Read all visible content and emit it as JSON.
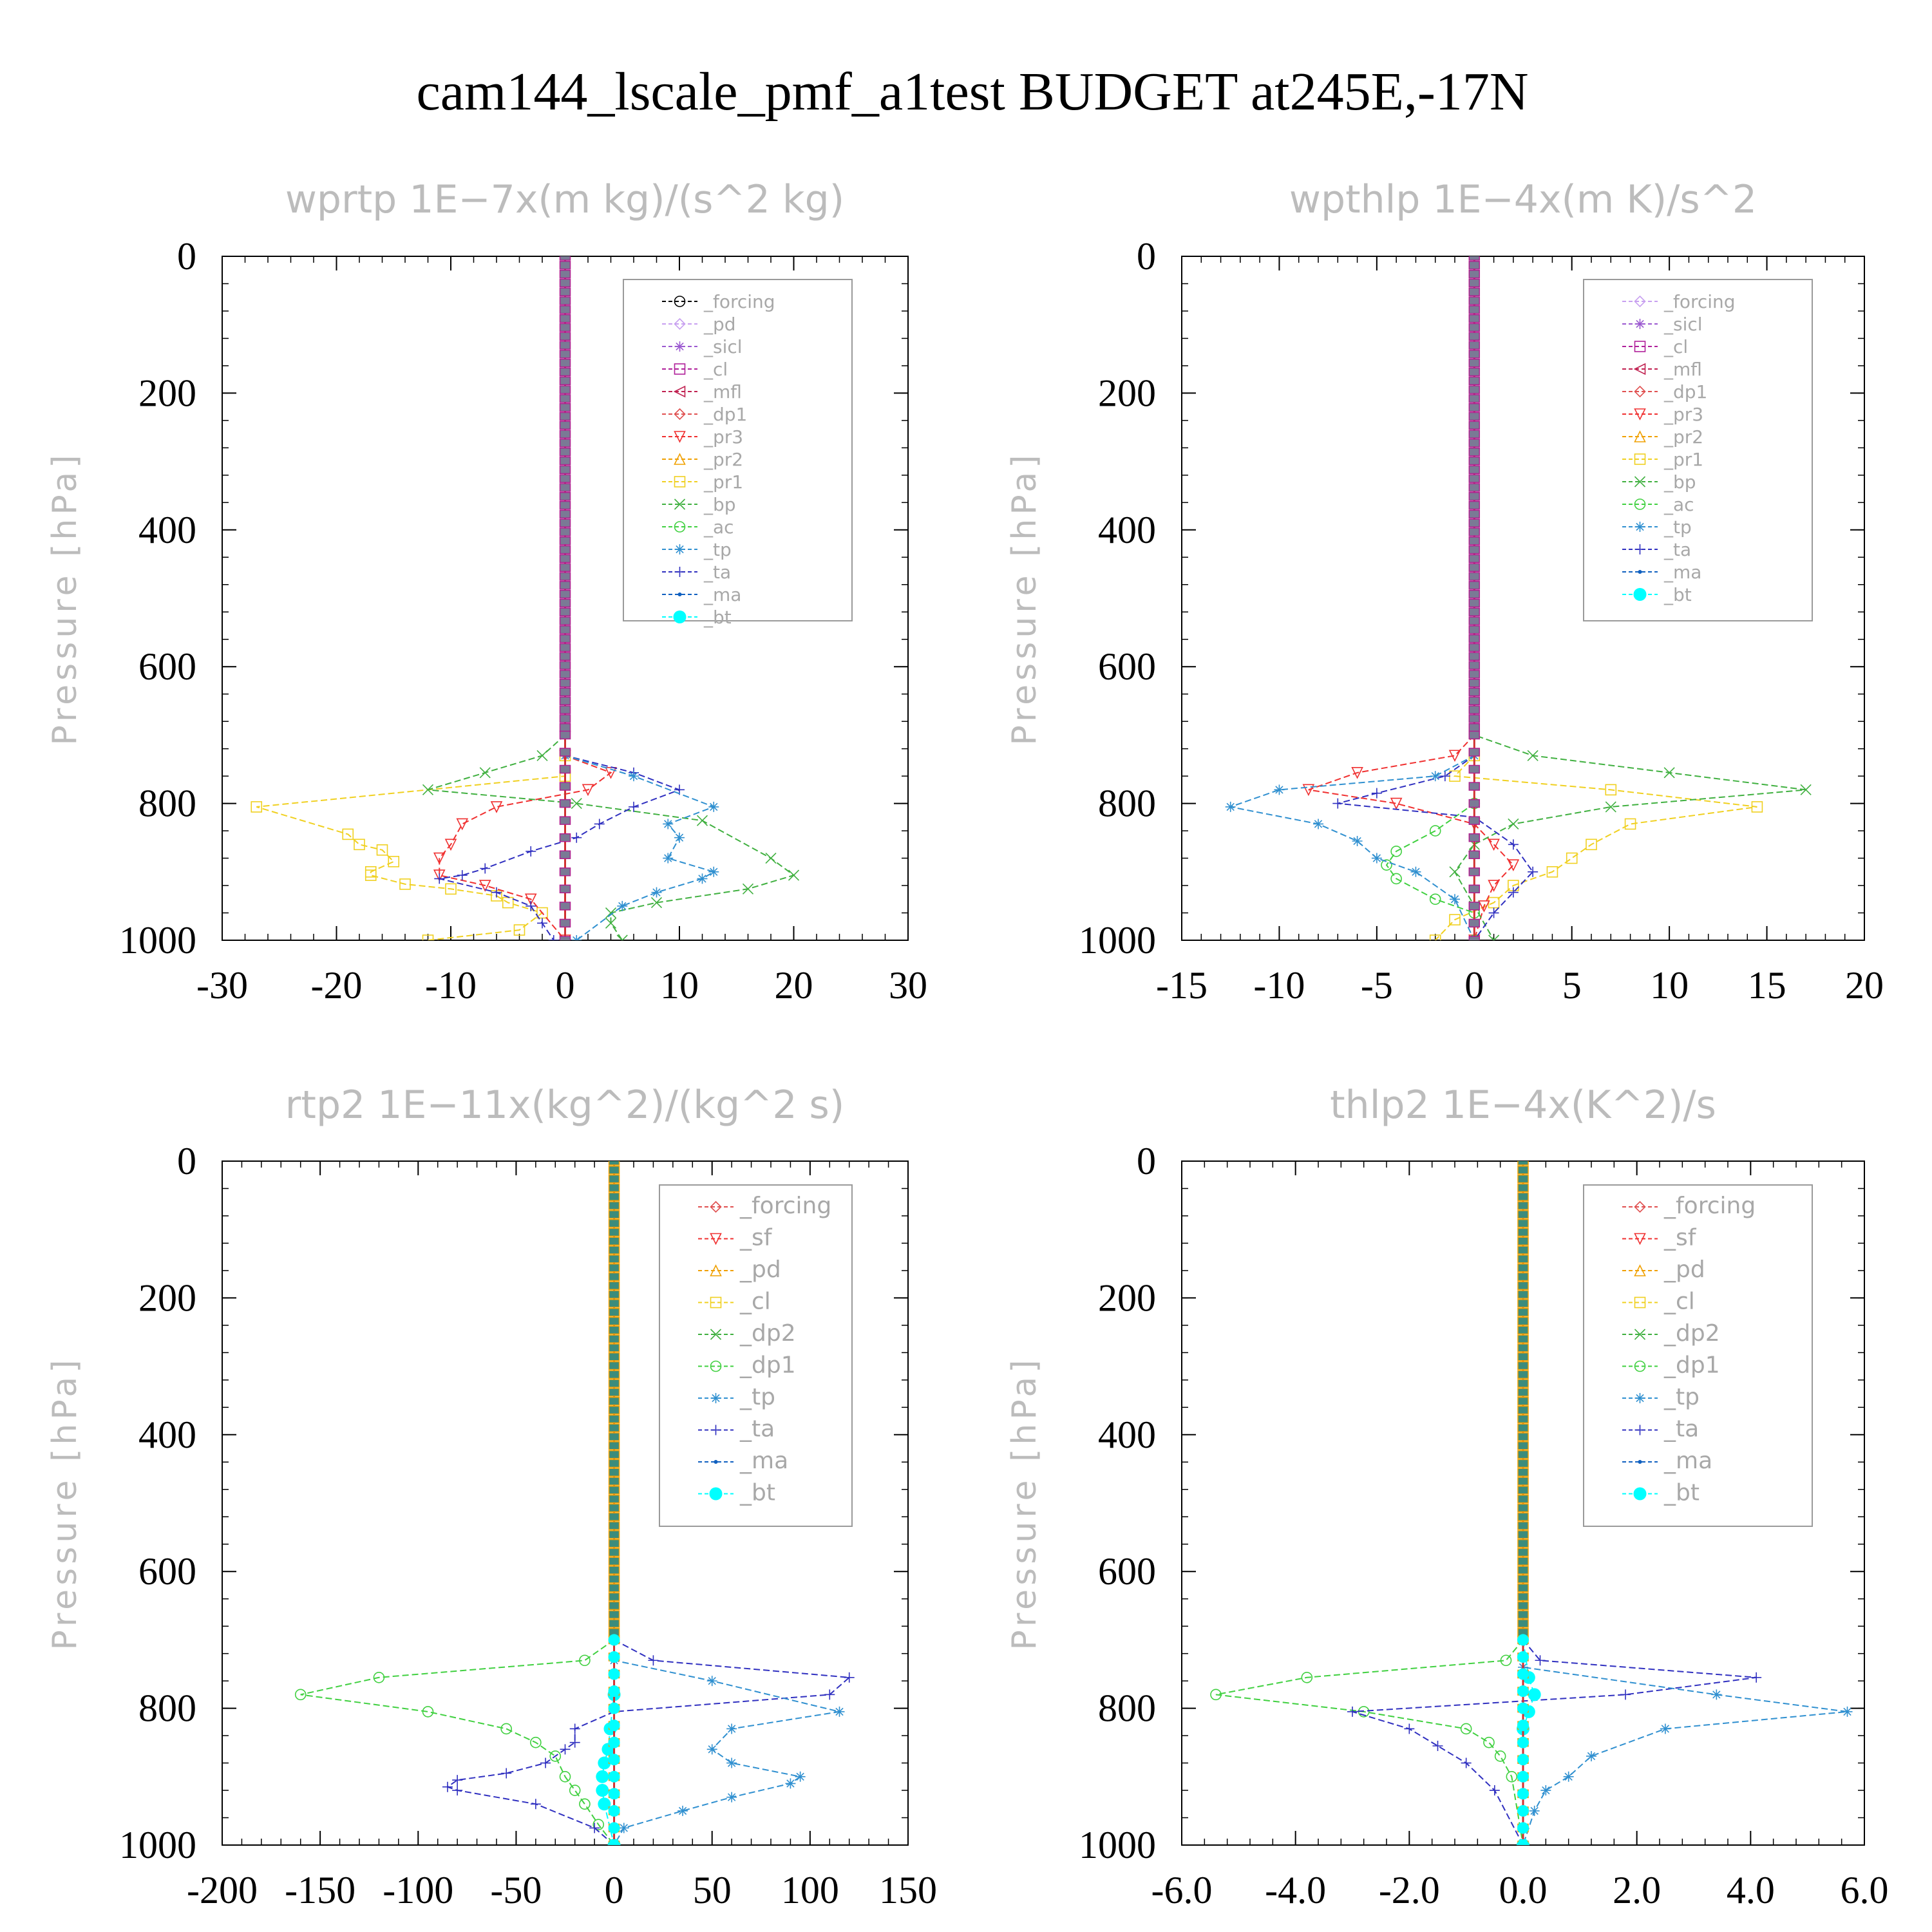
{
  "title": "cam144_lscale_pmf_a1test  BUDGET at245E,-17N",
  "chart_data": [
    {
      "type": "line",
      "title": "wprtp   1E−7x(m kg)/(s^2 kg)",
      "ylabel": "Pressure [hPa]",
      "xlim": [
        -30,
        30
      ],
      "ylim": [
        1000,
        0
      ],
      "xticks": [
        -30,
        -20,
        -10,
        0,
        10,
        20,
        30
      ],
      "xtick_labels": [
        "-30",
        "-20",
        "-10",
        "0",
        "10",
        "20",
        "30"
      ],
      "yticks": [
        0,
        200,
        400,
        600,
        800,
        1000
      ],
      "ytick_labels": [
        "0",
        "200",
        "400",
        "600",
        "800",
        "1000"
      ],
      "legend_position": "top-right",
      "grid": false,
      "legend": [
        {
          "name": "_forcing",
          "color": "#000000",
          "marker": "circle-dot"
        },
        {
          "name": "_pd",
          "color": "#c8a0f0",
          "marker": "diamond"
        },
        {
          "name": "_sicl",
          "color": "#9b59d0",
          "marker": "star"
        },
        {
          "name": "_cl",
          "color": "#b0209a",
          "marker": "plus-square"
        },
        {
          "name": "_mfl",
          "color": "#c02050",
          "marker": "tri-left"
        },
        {
          "name": "_dp1",
          "color": "#e05050",
          "marker": "diamond"
        },
        {
          "name": "_pr3",
          "color": "#f03030",
          "marker": "tri-down"
        },
        {
          "name": "_pr2",
          "color": "#f0a000",
          "marker": "tri-up"
        },
        {
          "name": "_pr1",
          "color": "#f0d020",
          "marker": "square"
        },
        {
          "name": "_bp",
          "color": "#40b040",
          "marker": "x"
        },
        {
          "name": "_ac",
          "color": "#40d040",
          "marker": "circle"
        },
        {
          "name": "_tp",
          "color": "#3090d0",
          "marker": "asterisk"
        },
        {
          "name": "_ta",
          "color": "#3030c0",
          "marker": "plus"
        },
        {
          "name": "_ma",
          "color": "#1060c0",
          "marker": "dot"
        },
        {
          "name": "_bt",
          "color": "#00ffff",
          "marker": "filled-circle"
        }
      ],
      "series": [
        {
          "name": "_pr1",
          "x": [
            0,
            0,
            0,
            -27,
            -19,
            -18,
            -16,
            -15,
            -17,
            -17,
            -14,
            -10,
            -6,
            -5,
            -2,
            -4,
            -12
          ],
          "y": [
            700,
            730,
            760,
            805,
            845,
            860,
            868,
            885,
            900,
            905,
            918,
            925,
            935,
            945,
            960,
            985,
            1000
          ]
        },
        {
          "name": "_pr3",
          "x": [
            0,
            0,
            4,
            2,
            -6,
            -9,
            -10,
            -11,
            -11,
            -7,
            -3,
            0
          ],
          "y": [
            700,
            730,
            755,
            780,
            805,
            830,
            860,
            880,
            905,
            920,
            940,
            1000
          ]
        },
        {
          "name": "_bp",
          "x": [
            0,
            -2,
            -7,
            -12,
            1,
            12,
            18,
            20,
            16,
            8,
            4,
            4,
            5
          ],
          "y": [
            700,
            730,
            755,
            780,
            800,
            825,
            880,
            905,
            925,
            945,
            960,
            975,
            1000
          ]
        },
        {
          "name": "_ta",
          "x": [
            0,
            0,
            6,
            10,
            6,
            3,
            1,
            -3,
            -7,
            -9,
            -11,
            -6,
            -3,
            -2,
            -1
          ],
          "y": [
            700,
            730,
            755,
            780,
            805,
            830,
            850,
            870,
            895,
            905,
            910,
            930,
            950,
            975,
            1000
          ]
        },
        {
          "name": "_tp",
          "x": [
            0,
            0,
            6,
            13,
            9,
            10,
            9,
            13,
            12,
            8,
            5,
            1
          ],
          "y": [
            700,
            730,
            760,
            805,
            830,
            850,
            880,
            900,
            910,
            930,
            950,
            1000
          ]
        }
      ]
    },
    {
      "type": "line",
      "title": "wpthlp   1E−4x(m K)/s^2",
      "ylabel": "Pressure [hPa]",
      "xlim": [
        -15,
        20
      ],
      "ylim": [
        1000,
        0
      ],
      "xticks": [
        -15,
        -10,
        -5,
        0,
        5,
        10,
        15,
        20
      ],
      "xtick_labels": [
        "-15",
        "-10",
        "-5",
        "0",
        "5",
        "10",
        "15",
        "20"
      ],
      "yticks": [
        0,
        200,
        400,
        600,
        800,
        1000
      ],
      "ytick_labels": [
        "0",
        "200",
        "400",
        "600",
        "800",
        "1000"
      ],
      "legend_position": "top-right",
      "grid": false,
      "legend": [
        {
          "name": "_forcing",
          "color": "#c8a0f0",
          "marker": "diamond"
        },
        {
          "name": "_sicl",
          "color": "#9b59d0",
          "marker": "star"
        },
        {
          "name": "_cl",
          "color": "#b0209a",
          "marker": "plus-square"
        },
        {
          "name": "_mfl",
          "color": "#c02050",
          "marker": "tri-left"
        },
        {
          "name": "_dp1",
          "color": "#e05050",
          "marker": "diamond"
        },
        {
          "name": "_pr3",
          "color": "#f03030",
          "marker": "tri-down"
        },
        {
          "name": "_pr2",
          "color": "#f0a000",
          "marker": "tri-up"
        },
        {
          "name": "_pr1",
          "color": "#f0d020",
          "marker": "square"
        },
        {
          "name": "_bp",
          "color": "#40b040",
          "marker": "x"
        },
        {
          "name": "_ac",
          "color": "#40d040",
          "marker": "circle"
        },
        {
          "name": "_tp",
          "color": "#3090d0",
          "marker": "asterisk"
        },
        {
          "name": "_ta",
          "color": "#3030c0",
          "marker": "plus"
        },
        {
          "name": "_ma",
          "color": "#1060c0",
          "marker": "dot"
        },
        {
          "name": "_bt",
          "color": "#00ffff",
          "marker": "filled-circle"
        }
      ],
      "series": [
        {
          "name": "_pr1",
          "x": [
            0,
            0,
            -1,
            7,
            14.5,
            8,
            6,
            5,
            4,
            2,
            1,
            -1,
            -2
          ],
          "y": [
            700,
            730,
            760,
            780,
            805,
            830,
            860,
            880,
            900,
            920,
            945,
            970,
            1000
          ]
        },
        {
          "name": "_pr3",
          "x": [
            0,
            -1,
            -6,
            -8.5,
            -4,
            0,
            1,
            2,
            1,
            0.5,
            0
          ],
          "y": [
            700,
            730,
            755,
            780,
            800,
            830,
            860,
            890,
            920,
            950,
            1000
          ]
        },
        {
          "name": "_bp",
          "x": [
            0,
            0,
            3,
            10,
            17,
            7,
            2,
            0,
            -1,
            0,
            1
          ],
          "y": [
            690,
            700,
            730,
            755,
            780,
            805,
            830,
            860,
            900,
            950,
            1000
          ]
        },
        {
          "name": "_ac",
          "x": [
            0,
            0,
            -2,
            -4,
            -4.5,
            -4,
            -2,
            0,
            0
          ],
          "y": [
            700,
            800,
            840,
            870,
            890,
            910,
            940,
            960,
            1000
          ]
        },
        {
          "name": "_ta",
          "x": [
            0,
            0,
            -1.5,
            -5,
            -7,
            0,
            2,
            3,
            2,
            1,
            0
          ],
          "y": [
            700,
            730,
            760,
            785,
            800,
            820,
            860,
            900,
            930,
            960,
            1000
          ]
        },
        {
          "name": "_tp",
          "x": [
            0,
            0,
            -2,
            -10,
            -12.5,
            -8,
            -6,
            -5,
            -3,
            -1,
            0
          ],
          "y": [
            700,
            730,
            760,
            780,
            805,
            830,
            855,
            880,
            900,
            940,
            1000
          ]
        }
      ]
    },
    {
      "type": "line",
      "title": "rtp2   1E−11x(kg^2)/(kg^2 s)",
      "ylabel": "Pressure [hPa]",
      "xlim": [
        -200,
        150
      ],
      "ylim": [
        1000,
        0
      ],
      "xticks": [
        -200,
        -150,
        -100,
        -50,
        0,
        50,
        100,
        150
      ],
      "xtick_labels": [
        "-200",
        "-150",
        "-100",
        "-50",
        "0",
        "50",
        "100",
        "150"
      ],
      "yticks": [
        0,
        200,
        400,
        600,
        800,
        1000
      ],
      "ytick_labels": [
        "0",
        "200",
        "400",
        "600",
        "800",
        "1000"
      ],
      "legend_position": "top-right",
      "grid": false,
      "legend": [
        {
          "name": "_forcing",
          "color": "#e05050",
          "marker": "diamond"
        },
        {
          "name": "_sf",
          "color": "#f03030",
          "marker": "tri-down"
        },
        {
          "name": "_pd",
          "color": "#f0a000",
          "marker": "tri-up"
        },
        {
          "name": "_cl",
          "color": "#f0d020",
          "marker": "square"
        },
        {
          "name": "_dp2",
          "color": "#40b040",
          "marker": "x"
        },
        {
          "name": "_dp1",
          "color": "#40d040",
          "marker": "circle"
        },
        {
          "name": "_tp",
          "color": "#3090d0",
          "marker": "asterisk"
        },
        {
          "name": "_ta",
          "color": "#3030c0",
          "marker": "plus"
        },
        {
          "name": "_ma",
          "color": "#1060c0",
          "marker": "dot"
        },
        {
          "name": "_bt",
          "color": "#00ffff",
          "marker": "filled-circle"
        }
      ],
      "series": [
        {
          "name": "_dp1",
          "x": [
            0,
            -15,
            -120,
            -160,
            -95,
            -55,
            -40,
            -30,
            -25,
            -20,
            -15,
            -8,
            0
          ],
          "y": [
            700,
            730,
            755,
            780,
            805,
            830,
            850,
            870,
            900,
            920,
            940,
            970,
            1000
          ]
        },
        {
          "name": "_ta",
          "x": [
            0,
            20,
            120,
            110,
            0,
            -20,
            -20,
            -25,
            -35,
            -55,
            -80,
            -85,
            -80,
            -40,
            -10,
            0
          ],
          "y": [
            700,
            730,
            755,
            780,
            805,
            830,
            850,
            860,
            880,
            895,
            905,
            915,
            920,
            940,
            975,
            1000
          ]
        },
        {
          "name": "_tp",
          "x": [
            0,
            0,
            50,
            115,
            60,
            50,
            60,
            95,
            90,
            60,
            35,
            5,
            0
          ],
          "y": [
            700,
            730,
            760,
            805,
            830,
            860,
            880,
            900,
            910,
            930,
            950,
            975,
            1000
          ]
        },
        {
          "name": "_bt",
          "x": [
            0,
            0,
            -2,
            -3,
            -5,
            -6,
            -6,
            -5,
            0
          ],
          "y": [
            700,
            780,
            830,
            860,
            880,
            900,
            920,
            940,
            1000
          ]
        }
      ]
    },
    {
      "type": "line",
      "title": "thlp2   1E−4x(K^2)/s",
      "ylabel": "Pressure [hPa]",
      "xlim": [
        -6.0,
        6.0
      ],
      "ylim": [
        1000,
        0
      ],
      "xticks": [
        -6,
        -4,
        -2,
        0,
        2,
        4,
        6
      ],
      "xtick_labels": [
        "-6.0",
        "-4.0",
        "-2.0",
        "0.0",
        "2.0",
        "4.0",
        "6.0"
      ],
      "yticks": [
        0,
        200,
        400,
        600,
        800,
        1000
      ],
      "ytick_labels": [
        "0",
        "200",
        "400",
        "600",
        "800",
        "1000"
      ],
      "legend_position": "top-right",
      "grid": false,
      "legend": [
        {
          "name": "_forcing",
          "color": "#e05050",
          "marker": "diamond"
        },
        {
          "name": "_sf",
          "color": "#f03030",
          "marker": "tri-down"
        },
        {
          "name": "_pd",
          "color": "#f0a000",
          "marker": "tri-up"
        },
        {
          "name": "_cl",
          "color": "#f0d020",
          "marker": "square"
        },
        {
          "name": "_dp2",
          "color": "#40b040",
          "marker": "x"
        },
        {
          "name": "_dp1",
          "color": "#40d040",
          "marker": "circle"
        },
        {
          "name": "_tp",
          "color": "#3090d0",
          "marker": "asterisk"
        },
        {
          "name": "_ta",
          "color": "#3030c0",
          "marker": "plus"
        },
        {
          "name": "_ma",
          "color": "#1060c0",
          "marker": "dot"
        },
        {
          "name": "_bt",
          "color": "#00ffff",
          "marker": "filled-circle"
        }
      ],
      "series": [
        {
          "name": "_dp1",
          "x": [
            0,
            -0.3,
            -3.8,
            -5.4,
            -2.8,
            -1.0,
            -0.6,
            -0.4,
            -0.2,
            0
          ],
          "y": [
            700,
            730,
            755,
            780,
            805,
            830,
            850,
            870,
            900,
            1000
          ]
        },
        {
          "name": "_ta",
          "x": [
            0,
            0.3,
            4.1,
            1.8,
            -3,
            -2,
            -1.5,
            -1.0,
            -0.5,
            0
          ],
          "y": [
            700,
            730,
            755,
            780,
            805,
            830,
            855,
            880,
            920,
            1000
          ]
        },
        {
          "name": "_tp",
          "x": [
            0,
            0,
            3.4,
            5.7,
            2.5,
            1.2,
            0.8,
            0.4,
            0.2,
            0
          ],
          "y": [
            700,
            740,
            780,
            805,
            830,
            870,
            900,
            920,
            950,
            1000
          ]
        },
        {
          "name": "_bt",
          "x": [
            0,
            0.1,
            0.2,
            0.1,
            0,
            0
          ],
          "y": [
            700,
            755,
            780,
            805,
            830,
            1000
          ]
        }
      ]
    }
  ]
}
